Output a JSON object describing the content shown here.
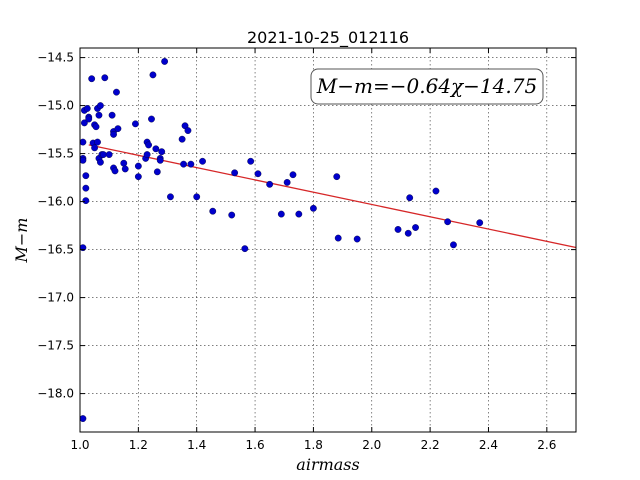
{
  "chart_data": {
    "type": "scatter",
    "title": "2021-10-25_012116",
    "xlabel": "airmass",
    "ylabel": "M−m",
    "xlim": [
      1.0,
      2.7
    ],
    "ylim": [
      -18.4,
      -14.4
    ],
    "y_inverted": true,
    "grid": true,
    "x_ticks": [
      1.0,
      1.2,
      1.4,
      1.6,
      1.8,
      2.0,
      2.2,
      2.4,
      2.6
    ],
    "x_tick_labels": [
      "1.0",
      "1.2",
      "1.4",
      "1.6",
      "1.8",
      "2.0",
      "2.2",
      "2.4",
      "2.6"
    ],
    "y_ticks": [
      -14.5,
      -15.0,
      -15.5,
      -16.0,
      -16.5,
      -17.0,
      -17.5,
      -18.0
    ],
    "y_tick_labels": [
      "−14.5",
      "−15.0",
      "−15.5",
      "−16.0",
      "−16.5",
      "−17.0",
      "−17.5",
      "−18.0"
    ],
    "annotation": "M−m=−0.64χ−14.75",
    "fit": {
      "slope": -0.64,
      "intercept": -14.75,
      "x_range": [
        1.03,
        2.7
      ],
      "color": "#d62728"
    },
    "point_color": "#0000cc",
    "points": [
      [
        1.01,
        -15.38
      ],
      [
        1.01,
        -15.55
      ],
      [
        1.01,
        -15.57
      ],
      [
        1.01,
        -16.48
      ],
      [
        1.01,
        -18.26
      ],
      [
        1.015,
        -15.05
      ],
      [
        1.015,
        -15.18
      ],
      [
        1.02,
        -15.73
      ],
      [
        1.02,
        -15.86
      ],
      [
        1.02,
        -15.99
      ],
      [
        1.025,
        -15.03
      ],
      [
        1.03,
        -15.12
      ],
      [
        1.03,
        -15.14
      ],
      [
        1.04,
        -14.72
      ],
      [
        1.045,
        -15.39
      ],
      [
        1.05,
        -15.44
      ],
      [
        1.05,
        -15.2
      ],
      [
        1.055,
        -15.22
      ],
      [
        1.06,
        -15.03
      ],
      [
        1.06,
        -15.38
      ],
      [
        1.065,
        -15.1
      ],
      [
        1.065,
        -15.55
      ],
      [
        1.07,
        -15.0
      ],
      [
        1.07,
        -15.59
      ],
      [
        1.075,
        -15.51
      ],
      [
        1.08,
        -15.51
      ],
      [
        1.085,
        -14.71
      ],
      [
        1.1,
        -15.51
      ],
      [
        1.11,
        -15.1
      ],
      [
        1.115,
        -15.27
      ],
      [
        1.115,
        -15.3
      ],
      [
        1.115,
        -15.65
      ],
      [
        1.12,
        -15.68
      ],
      [
        1.125,
        -14.86
      ],
      [
        1.13,
        -15.24
      ],
      [
        1.15,
        -15.6
      ],
      [
        1.155,
        -15.66
      ],
      [
        1.19,
        -15.19
      ],
      [
        1.2,
        -15.63
      ],
      [
        1.2,
        -15.74
      ],
      [
        1.225,
        -15.55
      ],
      [
        1.23,
        -15.38
      ],
      [
        1.23,
        -15.51
      ],
      [
        1.235,
        -15.41
      ],
      [
        1.245,
        -15.14
      ],
      [
        1.25,
        -14.68
      ],
      [
        1.26,
        -15.45
      ],
      [
        1.265,
        -15.69
      ],
      [
        1.275,
        -15.55
      ],
      [
        1.275,
        -15.57
      ],
      [
        1.28,
        -15.48
      ],
      [
        1.29,
        -14.54
      ],
      [
        1.31,
        -15.95
      ],
      [
        1.35,
        -15.35
      ],
      [
        1.355,
        -15.61
      ],
      [
        1.36,
        -15.21
      ],
      [
        1.37,
        -15.26
      ],
      [
        1.38,
        -15.61
      ],
      [
        1.4,
        -15.95
      ],
      [
        1.42,
        -15.58
      ],
      [
        1.455,
        -16.1
      ],
      [
        1.52,
        -16.14
      ],
      [
        1.53,
        -15.7
      ],
      [
        1.565,
        -16.49
      ],
      [
        1.585,
        -15.58
      ],
      [
        1.61,
        -15.71
      ],
      [
        1.65,
        -15.82
      ],
      [
        1.69,
        -16.13
      ],
      [
        1.71,
        -15.8
      ],
      [
        1.73,
        -15.72
      ],
      [
        1.75,
        -16.13
      ],
      [
        1.8,
        -16.07
      ],
      [
        1.88,
        -15.74
      ],
      [
        1.885,
        -16.38
      ],
      [
        1.95,
        -16.39
      ],
      [
        2.09,
        -16.29
      ],
      [
        2.125,
        -16.33
      ],
      [
        2.13,
        -15.96
      ],
      [
        2.15,
        -16.27
      ],
      [
        2.22,
        -15.89
      ],
      [
        2.26,
        -16.21
      ],
      [
        2.28,
        -16.45
      ],
      [
        2.37,
        -16.22
      ]
    ]
  }
}
